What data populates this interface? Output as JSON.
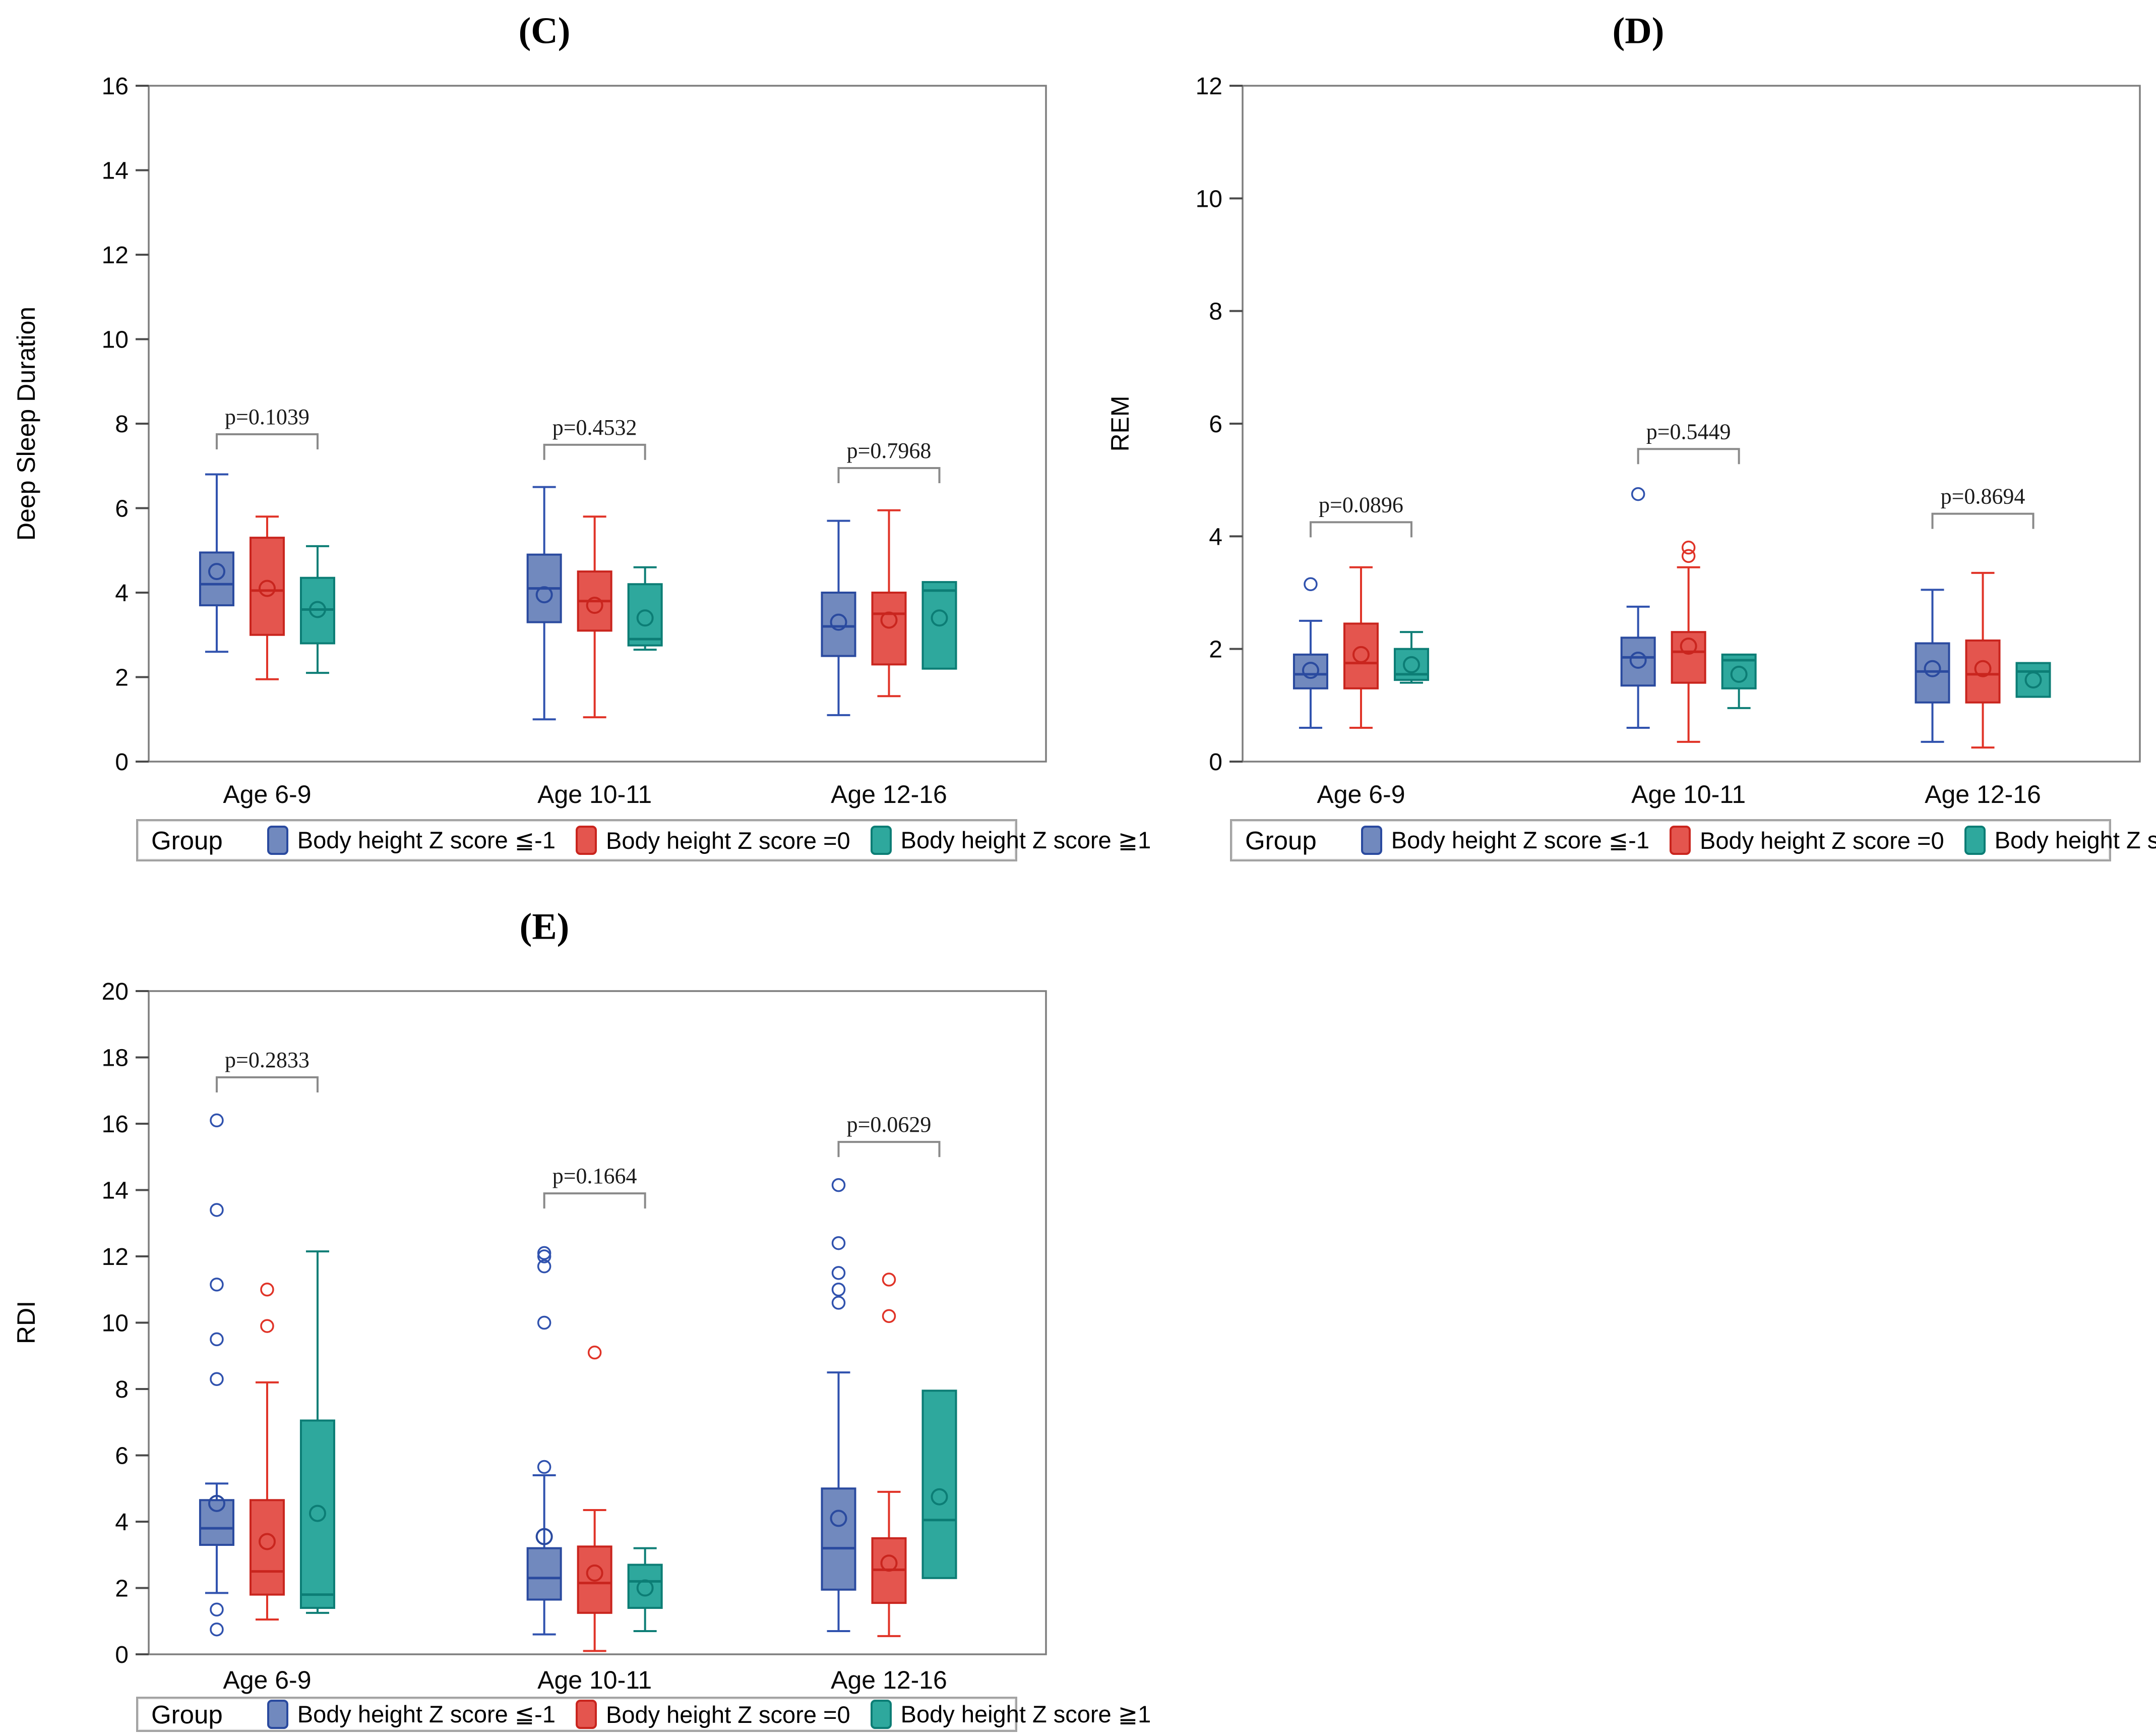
{
  "figure": {
    "background": "#ffffff"
  },
  "legend": {
    "title": "Group",
    "items": [
      {
        "label": "Body height Z score ≦-1",
        "fill": "#7189BE",
        "stroke": "#2A4A9F",
        "line": "#3052AE"
      },
      {
        "label": "Body height Z score =0",
        "fill": "#E4554E",
        "stroke": "#C9251E",
        "line": "#E03327"
      },
      {
        "label": "Body height Z score ≧1",
        "fill": "#2EA89D",
        "stroke": "#0C7D75",
        "line": "#0E7E76"
      }
    ]
  },
  "chart_data": [
    {
      "type": "box",
      "title": "(C)",
      "ylabel": "Deep Sleep Duration",
      "ylim": [
        0,
        16
      ],
      "ytick_step": 2,
      "grid": false,
      "legend_position": "bottom",
      "categories": [
        "Age 6-9",
        "Age 10-11",
        "Age 12-16"
      ],
      "series": [
        "Body height Z score ≦-1",
        "Body height Z score =0",
        "Body height Z score ≧1"
      ],
      "pvalues": [
        {
          "label": "p=0.1039",
          "bracket_y": 7.75
        },
        {
          "label": "p=0.4532",
          "bracket_y": 7.5
        },
        {
          "label": "p=0.7968",
          "bracket_y": 6.95
        }
      ],
      "groups": [
        {
          "category": "Age 6-9",
          "boxes": [
            {
              "whisker_low": 2.6,
              "q1": 3.7,
              "median": 4.2,
              "mean": 4.5,
              "q3": 4.95,
              "whisker_high": 6.8,
              "outliers": []
            },
            {
              "whisker_low": 1.95,
              "q1": 3.0,
              "median": 4.05,
              "mean": 4.1,
              "q3": 5.3,
              "whisker_high": 5.8,
              "outliers": []
            },
            {
              "whisker_low": 2.1,
              "q1": 2.8,
              "median": 3.6,
              "mean": 3.6,
              "q3": 4.35,
              "whisker_high": 5.1,
              "outliers": []
            }
          ]
        },
        {
          "category": "Age 10-11",
          "boxes": [
            {
              "whisker_low": 1.0,
              "q1": 3.3,
              "median": 4.1,
              "mean": 3.95,
              "q3": 4.9,
              "whisker_high": 6.5,
              "outliers": []
            },
            {
              "whisker_low": 1.05,
              "q1": 3.1,
              "median": 3.8,
              "mean": 3.7,
              "q3": 4.5,
              "whisker_high": 5.8,
              "outliers": []
            },
            {
              "whisker_low": 2.65,
              "q1": 2.75,
              "median": 2.9,
              "mean": 3.4,
              "q3": 4.2,
              "whisker_high": 4.6,
              "outliers": []
            }
          ]
        },
        {
          "category": "Age 12-16",
          "boxes": [
            {
              "whisker_low": 1.1,
              "q1": 2.5,
              "median": 3.2,
              "mean": 3.3,
              "q3": 4.0,
              "whisker_high": 5.7,
              "outliers": []
            },
            {
              "whisker_low": 1.55,
              "q1": 2.3,
              "median": 3.5,
              "mean": 3.35,
              "q3": 4.0,
              "whisker_high": 5.95,
              "outliers": []
            },
            {
              "whisker_low": null,
              "q1": 2.2,
              "median": 4.05,
              "mean": 3.4,
              "q3": 4.25,
              "whisker_high": null,
              "outliers": []
            }
          ]
        }
      ]
    },
    {
      "type": "box",
      "title": "(D)",
      "ylabel": "REM",
      "ylim": [
        0,
        12
      ],
      "ytick_step": 2,
      "grid": false,
      "legend_position": "bottom",
      "categories": [
        "Age 6-9",
        "Age 10-11",
        "Age 12-16"
      ],
      "series": [
        "Body height Z score ≦-1",
        "Body height Z score =0",
        "Body height Z score ≧1"
      ],
      "pvalues": [
        {
          "label": "p=0.0896",
          "bracket_y": 4.25
        },
        {
          "label": "p=0.5449",
          "bracket_y": 5.55
        },
        {
          "label": "p=0.8694",
          "bracket_y": 4.4
        }
      ],
      "groups": [
        {
          "category": "Age 6-9",
          "boxes": [
            {
              "whisker_low": 0.6,
              "q1": 1.3,
              "median": 1.55,
              "mean": 1.62,
              "q3": 1.9,
              "whisker_high": 2.5,
              "outliers": [
                3.15
              ]
            },
            {
              "whisker_low": 0.6,
              "q1": 1.3,
              "median": 1.75,
              "mean": 1.9,
              "q3": 2.45,
              "whisker_high": 3.45,
              "outliers": []
            },
            {
              "whisker_low": 1.4,
              "q1": 1.45,
              "median": 1.55,
              "mean": 1.72,
              "q3": 2.0,
              "whisker_high": 2.3,
              "outliers": []
            }
          ]
        },
        {
          "category": "Age 10-11",
          "boxes": [
            {
              "whisker_low": 0.6,
              "q1": 1.35,
              "median": 1.85,
              "mean": 1.8,
              "q3": 2.2,
              "whisker_high": 2.75,
              "outliers": [
                4.75
              ]
            },
            {
              "whisker_low": 0.35,
              "q1": 1.4,
              "median": 1.95,
              "mean": 2.05,
              "q3": 2.3,
              "whisker_high": 3.45,
              "outliers": [
                3.8,
                3.65
              ]
            },
            {
              "whisker_low": 0.95,
              "q1": 1.3,
              "median": 1.8,
              "mean": 1.55,
              "q3": 1.9,
              "whisker_high": null,
              "outliers": []
            }
          ]
        },
        {
          "category": "Age 12-16",
          "boxes": [
            {
              "whisker_low": 0.35,
              "q1": 1.05,
              "median": 1.6,
              "mean": 1.65,
              "q3": 2.1,
              "whisker_high": 3.05,
              "outliers": []
            },
            {
              "whisker_low": 0.25,
              "q1": 1.05,
              "median": 1.55,
              "mean": 1.65,
              "q3": 2.15,
              "whisker_high": 3.35,
              "outliers": []
            },
            {
              "whisker_low": null,
              "q1": 1.15,
              "median": 1.6,
              "mean": 1.45,
              "q3": 1.75,
              "whisker_high": null,
              "outliers": []
            }
          ]
        }
      ]
    },
    {
      "type": "box",
      "title": "(E)",
      "ylabel": "RDI",
      "ylim": [
        0,
        20
      ],
      "ytick_step": 2,
      "grid": false,
      "legend_position": "bottom",
      "categories": [
        "Age 6-9",
        "Age 10-11",
        "Age 12-16"
      ],
      "series": [
        "Body height Z score ≦-1",
        "Body height Z score =0",
        "Body height Z score ≧1"
      ],
      "pvalues": [
        {
          "label": "p=0.2833",
          "bracket_y": 17.4
        },
        {
          "label": "p=0.1664",
          "bracket_y": 13.9
        },
        {
          "label": "p=0.0629",
          "bracket_y": 15.45
        }
      ],
      "groups": [
        {
          "category": "Age 6-9",
          "boxes": [
            {
              "whisker_low": 1.85,
              "q1": 3.3,
              "median": 3.8,
              "mean": 4.55,
              "q3": 4.65,
              "whisker_high": 5.15,
              "outliers": [
                16.1,
                13.4,
                11.15,
                9.5,
                8.3,
                1.35,
                0.75
              ]
            },
            {
              "whisker_low": 1.05,
              "q1": 1.8,
              "median": 2.5,
              "mean": 3.4,
              "q3": 4.65,
              "whisker_high": 8.2,
              "outliers": [
                11.0,
                9.9
              ]
            },
            {
              "whisker_low": 1.25,
              "q1": 1.4,
              "median": 1.8,
              "mean": 4.25,
              "q3": 7.05,
              "whisker_high": 12.15,
              "outliers": []
            }
          ]
        },
        {
          "category": "Age 10-11",
          "boxes": [
            {
              "whisker_low": 0.6,
              "q1": 1.65,
              "median": 2.3,
              "mean": 3.55,
              "q3": 3.2,
              "whisker_high": 5.4,
              "outliers": [
                12.1,
                12.0,
                11.7,
                10.0,
                5.65
              ]
            },
            {
              "whisker_low": 0.1,
              "q1": 1.25,
              "median": 2.15,
              "mean": 2.45,
              "q3": 3.25,
              "whisker_high": 4.35,
              "outliers": [
                9.1
              ]
            },
            {
              "whisker_low": 0.7,
              "q1": 1.4,
              "median": 2.2,
              "mean": 2.0,
              "q3": 2.7,
              "whisker_high": 3.2,
              "outliers": []
            }
          ]
        },
        {
          "category": "Age 12-16",
          "boxes": [
            {
              "whisker_low": 0.7,
              "q1": 1.95,
              "median": 3.2,
              "mean": 4.1,
              "q3": 5.0,
              "whisker_high": 8.5,
              "outliers": [
                14.15,
                12.4,
                11.5,
                11.0,
                10.6
              ]
            },
            {
              "whisker_low": 0.55,
              "q1": 1.55,
              "median": 2.55,
              "mean": 2.75,
              "q3": 3.5,
              "whisker_high": 4.9,
              "outliers": [
                11.3,
                10.2
              ]
            },
            {
              "whisker_low": null,
              "q1": 2.3,
              "median": 4.05,
              "mean": 4.75,
              "q3": 7.95,
              "whisker_high": null,
              "outliers": []
            }
          ]
        }
      ]
    }
  ]
}
